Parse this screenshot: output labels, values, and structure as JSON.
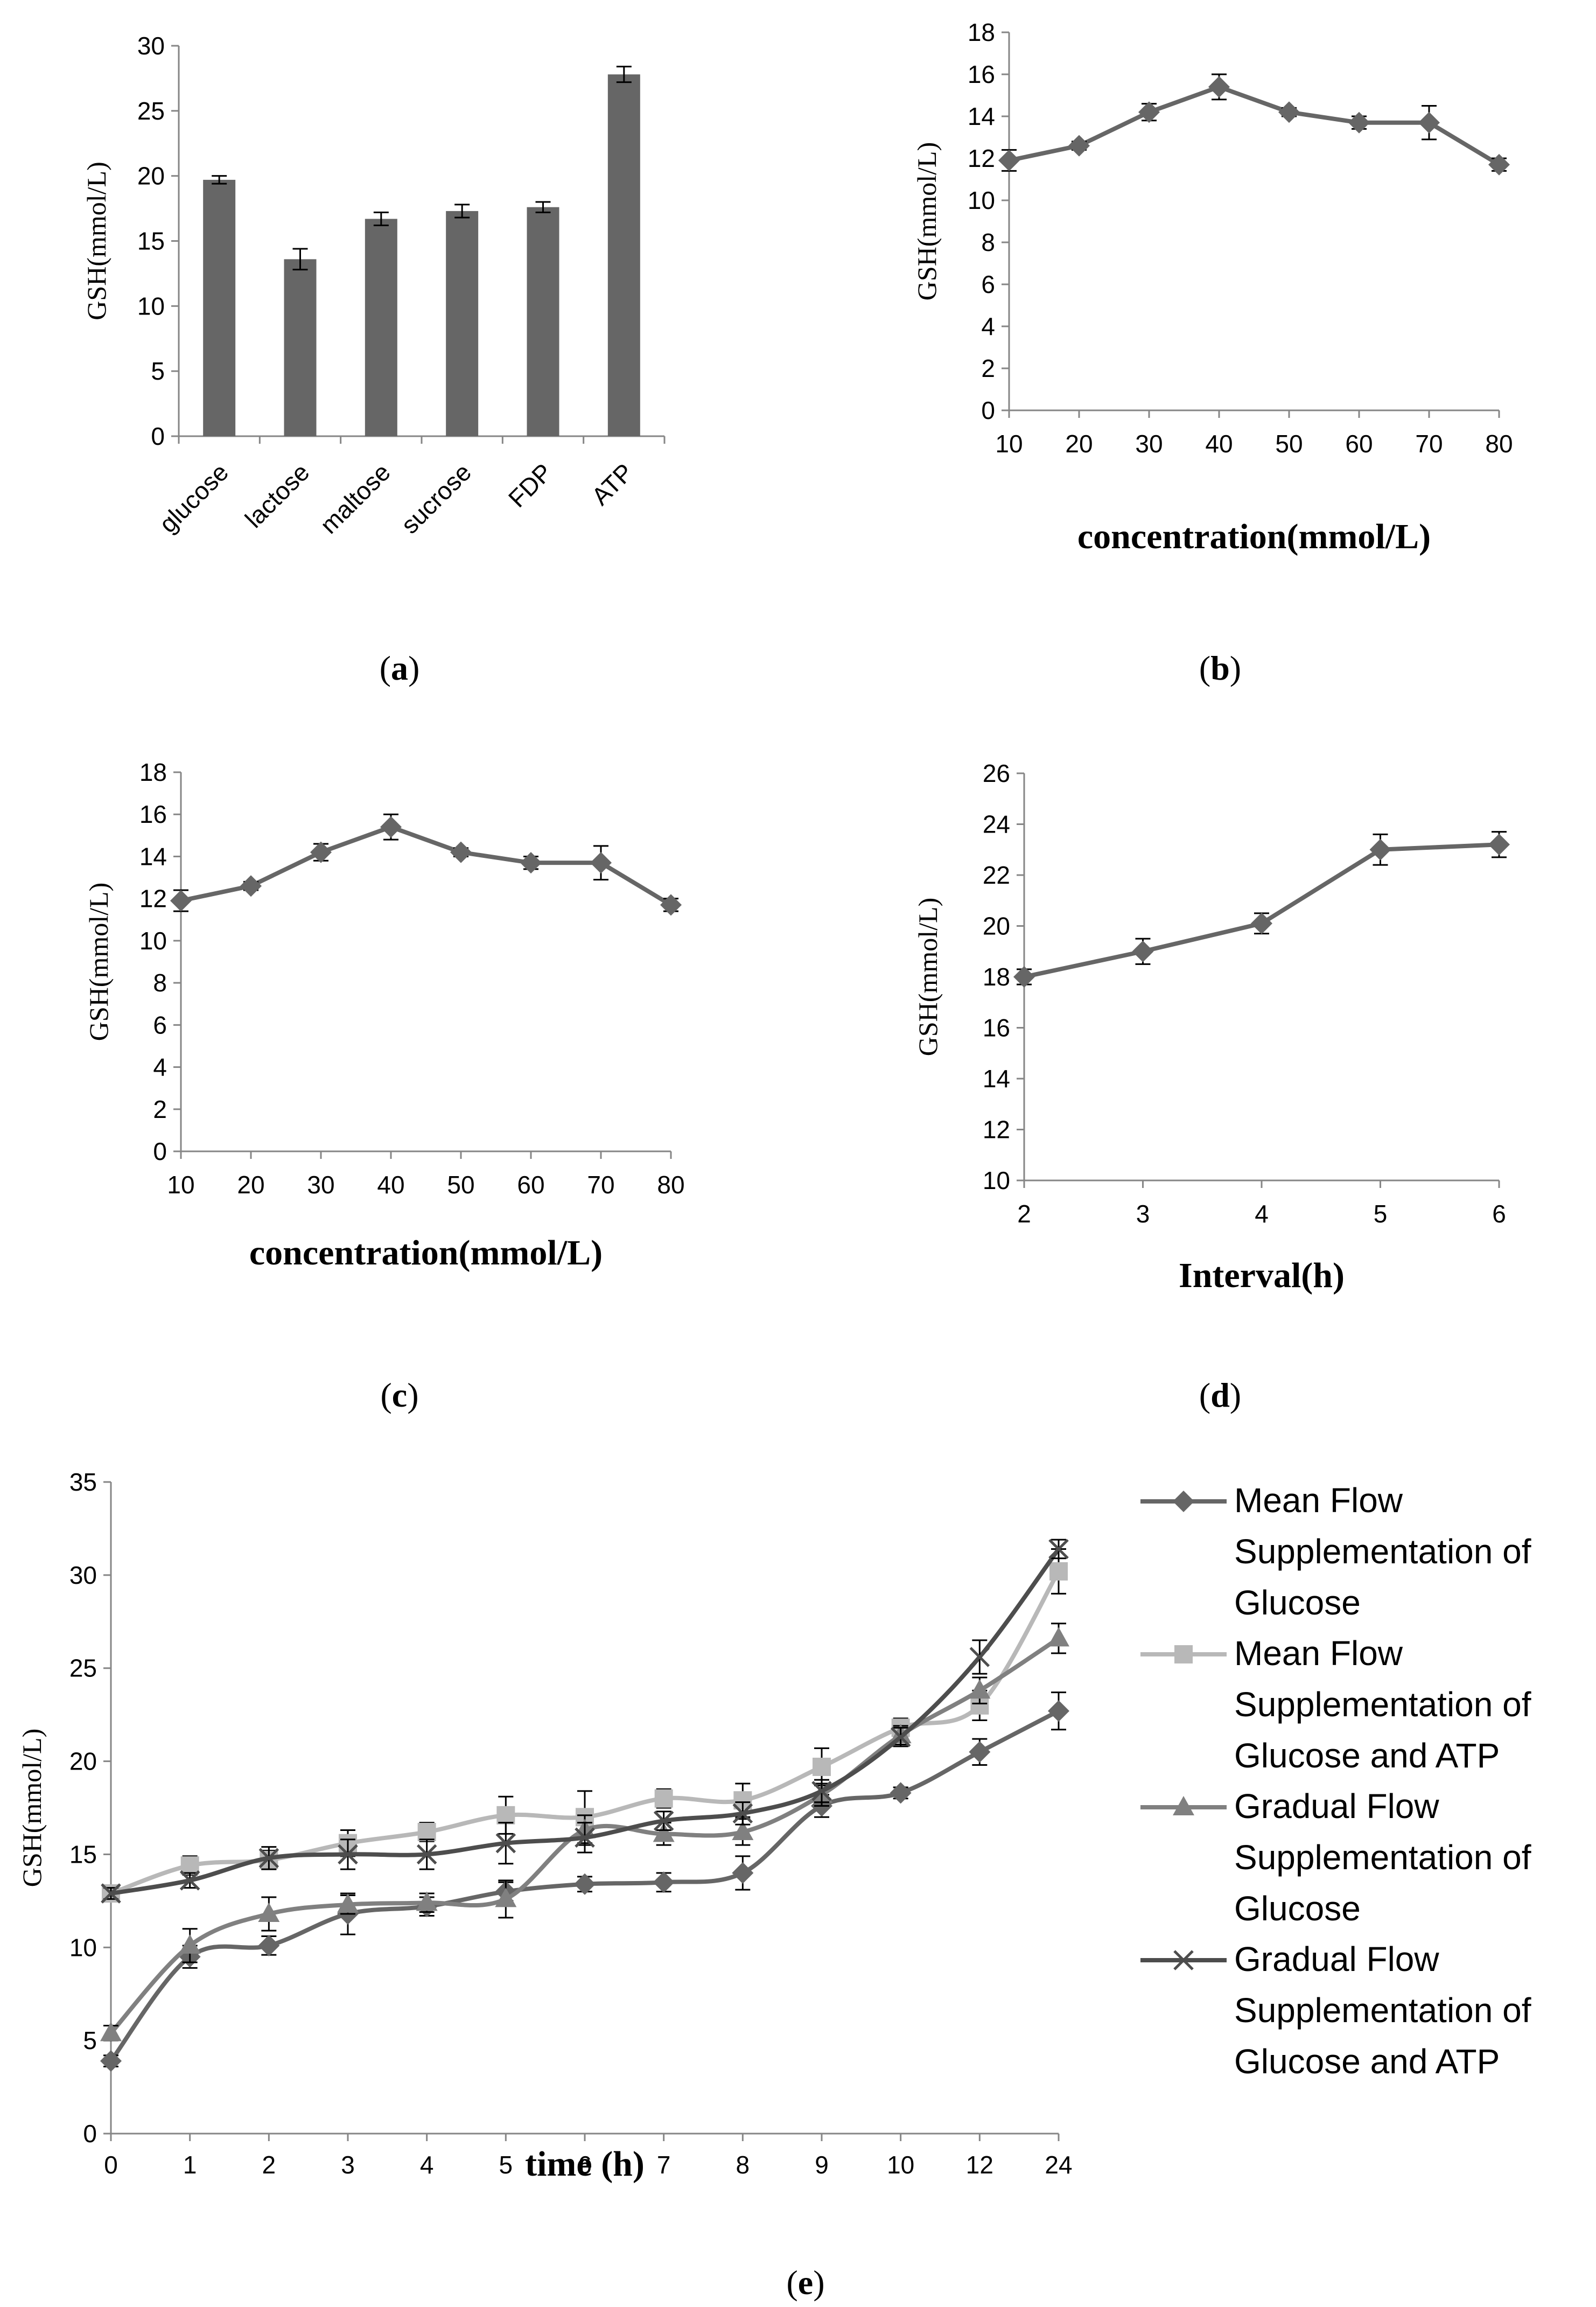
{
  "colors": {
    "bar": "#666666",
    "series_dark": "#666666",
    "series_light": "#b8b8b8",
    "series_mid": "#808080",
    "series_darkest": "#4d4d4d",
    "axis": "#868686",
    "errorbar": "#000000"
  },
  "chart_data": [
    {
      "type": "bar",
      "panel": "a",
      "title": "",
      "xlabel": "",
      "ylabel": "GSH(mmol/L)",
      "ylim": [
        0,
        30
      ],
      "yticks": [
        0,
        5,
        10,
        15,
        20,
        25,
        30
      ],
      "categories": [
        "glucose",
        "lactose",
        "maltose",
        "sucrose",
        "FDP",
        "ATP"
      ],
      "values": [
        19.7,
        13.6,
        16.7,
        17.3,
        17.6,
        27.8
      ],
      "errors": [
        0.3,
        0.8,
        0.5,
        0.5,
        0.4,
        0.6
      ],
      "grid": false,
      "legend": "none"
    },
    {
      "type": "line",
      "panel": "b",
      "title": "",
      "xlabel": "concentration(mmol/L)",
      "ylabel": "GSH(mmol/L)",
      "xlim": [
        10,
        80
      ],
      "xticks": [
        10,
        20,
        30,
        40,
        50,
        60,
        70,
        80
      ],
      "ylim": [
        0,
        18
      ],
      "yticks": [
        0,
        2,
        4,
        6,
        8,
        10,
        12,
        14,
        16,
        18
      ],
      "x": [
        10,
        20,
        30,
        40,
        50,
        60,
        70,
        80
      ],
      "values": [
        11.9,
        12.6,
        14.2,
        15.4,
        14.2,
        13.7,
        13.7,
        11.7
      ],
      "errors": [
        0.5,
        0.2,
        0.4,
        0.6,
        0.2,
        0.3,
        0.8,
        0.3
      ],
      "grid": false,
      "legend": "none"
    },
    {
      "type": "line",
      "panel": "c",
      "title": "",
      "xlabel": "concentration(mmol/L)",
      "ylabel": "GSH(mmol/L)",
      "xlim": [
        10,
        80
      ],
      "xticks": [
        10,
        20,
        30,
        40,
        50,
        60,
        70,
        80
      ],
      "ylim": [
        0,
        18
      ],
      "yticks": [
        0,
        2,
        4,
        6,
        8,
        10,
        12,
        14,
        16,
        18
      ],
      "x": [
        10,
        20,
        30,
        40,
        50,
        60,
        70,
        80
      ],
      "values": [
        11.9,
        12.6,
        14.2,
        15.4,
        14.2,
        13.7,
        13.7,
        11.7
      ],
      "errors": [
        0.5,
        0.2,
        0.4,
        0.6,
        0.2,
        0.3,
        0.8,
        0.3
      ],
      "grid": false,
      "legend": "none"
    },
    {
      "type": "line",
      "panel": "d",
      "title": "",
      "xlabel": "Interval(h)",
      "ylabel": "GSH(mmol/L)",
      "xlim": [
        2,
        6
      ],
      "xticks": [
        2,
        3,
        4,
        5,
        6
      ],
      "ylim": [
        10,
        26
      ],
      "yticks": [
        10,
        12,
        14,
        16,
        18,
        20,
        22,
        24,
        26
      ],
      "x": [
        2,
        3,
        4,
        5,
        6
      ],
      "values": [
        18.0,
        19.0,
        20.1,
        23.0,
        23.2
      ],
      "errors": [
        0.3,
        0.5,
        0.4,
        0.6,
        0.5
      ],
      "grid": false,
      "legend": "none"
    },
    {
      "type": "line",
      "panel": "e",
      "title": "",
      "xlabel": "time (h)",
      "ylabel": "GSH(mmol/L)",
      "categories": [
        "0",
        "1",
        "2",
        "3",
        "4",
        "5",
        "6",
        "7",
        "8",
        "9",
        "10",
        "12",
        "24"
      ],
      "ylim": [
        0,
        35
      ],
      "yticks": [
        0,
        5,
        10,
        15,
        20,
        25,
        30,
        35
      ],
      "grid": false,
      "legend": "right",
      "series": [
        {
          "name": "Mean Flow Supplementation of Glucose",
          "legend_lines": [
            "Mean Flow",
            "Supplementation of",
            "Glucose"
          ],
          "marker": "diamond",
          "color": "#666666",
          "values": [
            3.9,
            9.5,
            10.1,
            11.8,
            12.2,
            13.0,
            13.4,
            13.5,
            14.0,
            17.6,
            18.3,
            20.5,
            22.7
          ],
          "errors": [
            0.3,
            0.6,
            0.5,
            1.1,
            0.5,
            0.5,
            0.4,
            0.5,
            0.9,
            0.6,
            0.3,
            0.7,
            1.0
          ]
        },
        {
          "name": "Mean Flow Supplementation of Glucose and ATP",
          "legend_lines": [
            "Mean Flow",
            "Supplementation of",
            "Glucose and ATP"
          ],
          "marker": "square",
          "color": "#b8b8b8",
          "values": [
            12.9,
            14.4,
            14.7,
            15.6,
            16.2,
            17.1,
            17.0,
            18.0,
            17.9,
            19.7,
            21.8,
            23.0,
            30.2
          ],
          "errors": [
            0.4,
            0.5,
            0.5,
            0.7,
            0.5,
            1.0,
            1.4,
            0.5,
            0.9,
            1.0,
            0.5,
            0.8,
            1.2
          ]
        },
        {
          "name": "Gradual Flow Supplementation of Glucose",
          "legend_lines": [
            "Gradual Flow",
            "Supplementation of",
            "Glucose"
          ],
          "marker": "triangle",
          "color": "#808080",
          "values": [
            5.4,
            10.1,
            11.8,
            12.3,
            12.4,
            12.6,
            16.3,
            16.1,
            16.2,
            18.2,
            21.4,
            23.8,
            26.6
          ],
          "errors": [
            0.4,
            0.9,
            0.9,
            0.5,
            0.5,
            1.0,
            0.8,
            0.6,
            0.7,
            0.6,
            0.5,
            0.7,
            0.8
          ]
        },
        {
          "name": "Gradual Flow Supplementation of Glucose and ATP",
          "legend_lines": [
            "Gradual Flow",
            "Supplementation of",
            "Glucose and ATP"
          ],
          "marker": "x",
          "color": "#4d4d4d",
          "values": [
            12.9,
            13.6,
            14.8,
            15.0,
            15.0,
            15.6,
            15.9,
            16.8,
            17.2,
            18.4,
            21.3,
            25.6,
            31.4
          ],
          "errors": [
            0.3,
            0.4,
            0.6,
            0.8,
            0.8,
            1.1,
            0.8,
            0.5,
            0.6,
            0.6,
            0.5,
            0.9,
            0.5
          ]
        }
      ]
    }
  ],
  "panel_labels": {
    "a": [
      "(",
      "a",
      ")"
    ],
    "b": [
      "(",
      "b",
      ")"
    ],
    "c": [
      "(",
      "c",
      ")"
    ],
    "d": [
      "(",
      "d",
      ")"
    ],
    "e": [
      "(",
      "e",
      ")"
    ]
  }
}
